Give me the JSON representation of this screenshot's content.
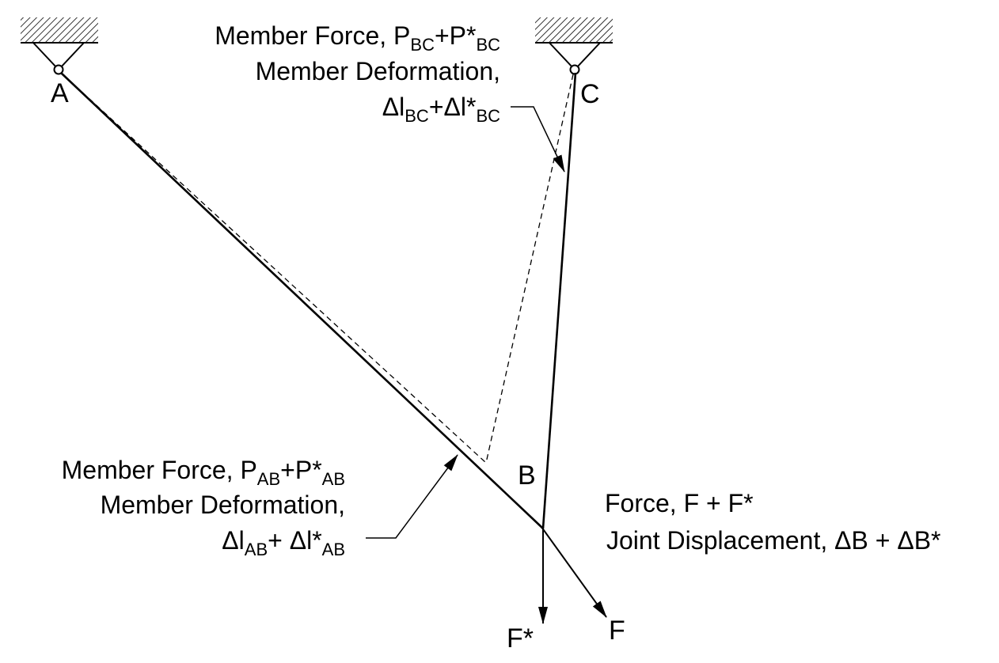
{
  "diagram": {
    "colors": {
      "ink": "#000000",
      "background": "#ffffff"
    },
    "nodes": {
      "A": {
        "label": "A"
      },
      "B": {
        "label": "B"
      },
      "C": {
        "label": "C"
      }
    },
    "loads": {
      "F": {
        "label": "F"
      },
      "F_star": {
        "label": "F*"
      }
    },
    "annotations": {
      "bc": {
        "line1_prefix": "Member Force, P",
        "line1_sub1": "BC",
        "line1_mid": "+P*",
        "line1_sub2": "BC",
        "line2": "Member Deformation,",
        "line3_prefix": "Δl",
        "line3_sub1": "BC",
        "line3_mid": "+Δl*",
        "line3_sub2": "BC"
      },
      "ab": {
        "line1_prefix": "Member Force, P",
        "line1_sub1": "AB",
        "line1_mid": "+P*",
        "line1_sub2": "AB",
        "line2": "Member Deformation,",
        "line3_prefix": "Δl",
        "line3_sub1": "AB",
        "line3_mid": "+ Δl*",
        "line3_sub2": "AB"
      },
      "joint": {
        "line1": "Force, F + F*",
        "line2": "Joint Displacement, ΔB + ΔB*"
      }
    }
  }
}
